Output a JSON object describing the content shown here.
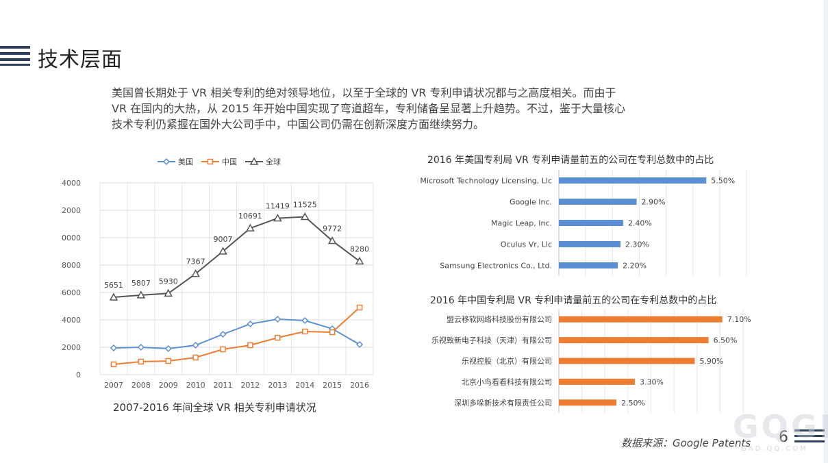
{
  "slide": {
    "title": "技术层面",
    "intro_lines": [
      "美国曾长期处于 VR 相关专利的绝对领导地位，以至于全球的 VR 专利申请状况都与之高度相关。而由于",
      "VR 在国内的大热，从 2015 年开始中国实现了弯道超车，专利储备呈显著上升趋势。不过，鉴于大量核心",
      "技术专利仍紧握在国外大公司手中，中国公司仍需在创新深度方面继续努力。"
    ],
    "source": "数据来源：Google Patents",
    "page_number": "6",
    "watermark": "GQGI",
    "watermark_sub": "GAD.QQ.COM"
  },
  "chart_data": [
    {
      "type": "line",
      "title": "2007-2016 年间全球 VR 相关专利申请状况",
      "x": [
        "2007",
        "2008",
        "2009",
        "2010",
        "2011",
        "2012",
        "2013",
        "2014",
        "2015",
        "2016"
      ],
      "ylim": [
        0,
        14000
      ],
      "yticks": [
        "0",
        "2000",
        "4000",
        "6000",
        "8000",
        "10000",
        "12000",
        "14000"
      ],
      "grid": true,
      "legend": "top",
      "series": [
        {
          "name": "美国",
          "color": "#5b8fd4",
          "marker": "diamond",
          "values": [
            1950,
            2000,
            1900,
            2150,
            2950,
            3700,
            4050,
            3950,
            3350,
            2200
          ],
          "labels": false
        },
        {
          "name": "中国",
          "color": "#ed7d31",
          "marker": "square",
          "values": [
            750,
            950,
            1000,
            1250,
            1850,
            2150,
            2700,
            3150,
            3100,
            4900
          ],
          "labels": false
        },
        {
          "name": "全球",
          "color": "#555555",
          "marker": "triangle",
          "values": [
            5651,
            5807,
            5930,
            7367,
            9007,
            10691,
            11419,
            11525,
            9772,
            8280
          ],
          "labels": true
        }
      ]
    },
    {
      "type": "bar",
      "orientation": "horizontal",
      "title": "2016 年美国专利局 VR 专利申请量前五的公司在专利总数中的占比",
      "color": "#5b8fd4",
      "categories": [
        "Microsoft Technology Licensing, Llc",
        "Google Inc.",
        "Magic Leap, Inc.",
        "Oculus Vr, Llc",
        "Samsung Electronics Co., Ltd."
      ],
      "values": [
        5.5,
        2.9,
        2.4,
        2.3,
        2.2
      ],
      "value_labels": [
        "5.50%",
        "2.90%",
        "2.40%",
        "2.30%",
        "2.20%"
      ],
      "xlim": [
        0,
        7
      ],
      "grid": true
    },
    {
      "type": "bar",
      "orientation": "horizontal",
      "title": "2016 年中国专利局 VR 专利申请量前五的公司在专利总数中的占比",
      "color": "#ed7d31",
      "categories": [
        "盟云移软网络科技股份有限公司",
        "乐视致新电子科技（天津）有限公司",
        "乐视控股（北京）有限公司",
        "北京小鸟看看科技有限公司",
        "深圳多哚新技术有限责任公司"
      ],
      "values": [
        7.1,
        6.5,
        5.9,
        3.3,
        2.5
      ],
      "value_labels": [
        "7.10%",
        "6.50%",
        "5.90%",
        "3.30%",
        "2.50%"
      ],
      "xlim": [
        0,
        8
      ],
      "grid": true
    }
  ]
}
